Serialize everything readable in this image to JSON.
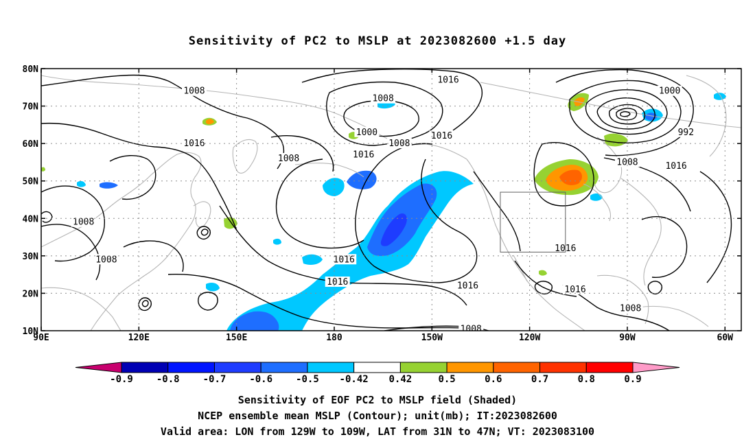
{
  "title": "Sensitivity of PC2 to MSLP at 2023082600 +1.5 day",
  "captions": [
    "Sensitivity of EOF PC2 to MSLP field (Shaded)",
    "NCEP ensemble mean MSLP (Contour); unit(mb); IT:2023082600",
    "Valid area: LON from 129W to 109W, LAT from 31N to 47N; VT: 2023083100"
  ],
  "map": {
    "lon_range": [
      90,
      305
    ],
    "lat_range": [
      10,
      80
    ],
    "x_ticks": [
      {
        "lon": 90,
        "label": "90E"
      },
      {
        "lon": 120,
        "label": "120E"
      },
      {
        "lon": 150,
        "label": "150E"
      },
      {
        "lon": 180,
        "label": "180"
      },
      {
        "lon": 210,
        "label": "150W"
      },
      {
        "lon": 240,
        "label": "120W"
      },
      {
        "lon": 270,
        "label": "90W"
      },
      {
        "lon": 300,
        "label": "60W"
      }
    ],
    "y_ticks": [
      {
        "lat": 10,
        "label": "10N"
      },
      {
        "lat": 20,
        "label": "20N"
      },
      {
        "lat": 30,
        "label": "30N"
      },
      {
        "lat": 40,
        "label": "40N"
      },
      {
        "lat": 50,
        "label": "50N"
      },
      {
        "lat": 60,
        "label": "60N"
      },
      {
        "lat": 70,
        "label": "70N"
      },
      {
        "lat": 80,
        "label": "80N"
      }
    ],
    "valid_area": {
      "lon_min": 231,
      "lon_max": 251,
      "lat_min": 31,
      "lat_max": 47
    },
    "contour_labels": [
      {
        "text": "1008",
        "lon": 137,
        "lat": 74
      },
      {
        "text": "1016",
        "lon": 215,
        "lat": 77
      },
      {
        "text": "1008",
        "lon": 195,
        "lat": 72
      },
      {
        "text": "1000",
        "lon": 190,
        "lat": 63
      },
      {
        "text": "1008",
        "lon": 200,
        "lat": 60
      },
      {
        "text": "1016",
        "lon": 213,
        "lat": 62
      },
      {
        "text": "1016",
        "lon": 137,
        "lat": 60
      },
      {
        "text": "1008",
        "lon": 166,
        "lat": 56
      },
      {
        "text": "1016",
        "lon": 189,
        "lat": 57
      },
      {
        "text": "1008",
        "lon": 103,
        "lat": 39
      },
      {
        "text": "1008",
        "lon": 110,
        "lat": 29
      },
      {
        "text": "1016",
        "lon": 183,
        "lat": 29
      },
      {
        "text": "1016",
        "lon": 181,
        "lat": 23
      },
      {
        "text": "1016",
        "lon": 221,
        "lat": 22
      },
      {
        "text": "1008",
        "lon": 222,
        "lat": 10.5
      },
      {
        "text": "1000",
        "lon": 283,
        "lat": 74
      },
      {
        "text": "992",
        "lon": 288,
        "lat": 63
      },
      {
        "text": "1008",
        "lon": 270,
        "lat": 55
      },
      {
        "text": "1016",
        "lon": 285,
        "lat": 54
      },
      {
        "text": "1016",
        "lon": 251,
        "lat": 32
      },
      {
        "text": "1016",
        "lon": 254,
        "lat": 21
      },
      {
        "text": "1008",
        "lon": 271,
        "lat": 16
      }
    ]
  },
  "colorbar": {
    "labels": [
      "-0.9",
      "-0.8",
      "-0.7",
      "-0.6",
      "-0.5",
      "-0.42",
      "0.42",
      "0.5",
      "0.6",
      "0.7",
      "0.8",
      "0.9"
    ],
    "colors": [
      "#0000b4",
      "#0014ff",
      "#1e3cff",
      "#1e6eff",
      "#00c8ff",
      "#ffffff",
      "#96d232",
      "#ff9600",
      "#ff6400",
      "#ff3200",
      "#ff0000"
    ],
    "low_color": "#c8006e",
    "high_color": "#ff9bc8"
  },
  "colors": {
    "contour": "#000000",
    "coast": "#b4b4b4",
    "grid": "#8c8c8c"
  }
}
